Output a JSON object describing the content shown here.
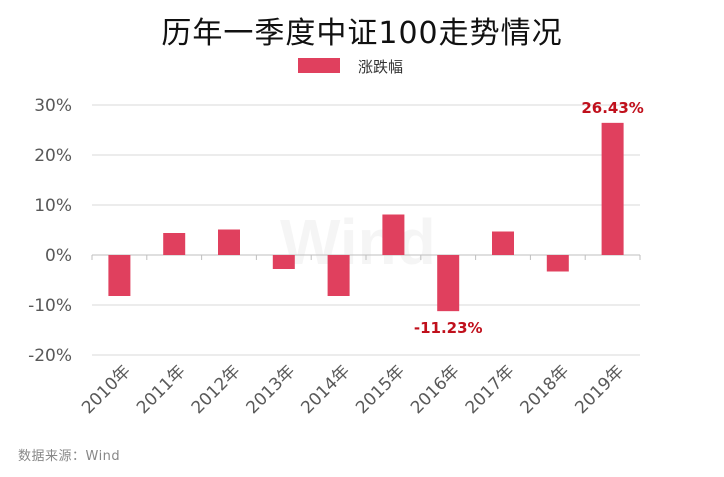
{
  "title": "历年一季度中证100走势情况",
  "source": "数据来源：Wind",
  "watermark": "Wind",
  "colors": {
    "bar": "#e0405e",
    "label": "#c0101c",
    "grid": "#d9d9d9",
    "axis": "#bfbfbf",
    "tick": "#595959"
  },
  "chart_data": {
    "type": "bar",
    "categories": [
      "2010年",
      "2011年",
      "2012年",
      "2013年",
      "2014年",
      "2015年",
      "2016年",
      "2017年",
      "2018年",
      "2019年"
    ],
    "series": [
      {
        "name": "涨跌幅",
        "values": [
          -8.2,
          4.4,
          5.1,
          -2.8,
          -8.2,
          8.1,
          -11.23,
          4.7,
          -3.3,
          26.43
        ]
      }
    ],
    "data_labels": [
      {
        "index": 6,
        "text": "-11.23%"
      },
      {
        "index": 9,
        "text": "26.43%"
      }
    ],
    "yticks": [
      "30%",
      "20%",
      "10%",
      "0%",
      "-10%",
      "-20%"
    ],
    "ylim": [
      -20,
      30
    ],
    "grid": true,
    "legend": "top-center"
  }
}
